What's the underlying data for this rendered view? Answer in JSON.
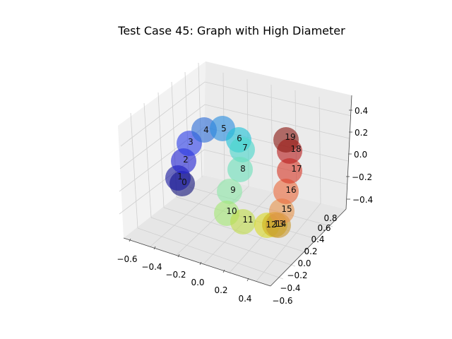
{
  "title": "Test Case 45: Graph with High Diameter",
  "axes": {
    "x_ticks": [
      "−0.6",
      "−0.4",
      "−0.2",
      "0.0",
      "0.2",
      "0.4"
    ],
    "y_ticks": [
      "−0.6",
      "−0.4",
      "−0.2",
      "0.0",
      "0.2",
      "0.4",
      "0.6",
      "0.8"
    ],
    "z_ticks": [
      "−0.4",
      "−0.2",
      "0.0",
      "0.2",
      "0.4"
    ]
  },
  "nodes": [
    {
      "label": "0",
      "color": "#15157a"
    },
    {
      "label": "1",
      "color": "#1a1aa0"
    },
    {
      "label": "2",
      "color": "#2323d2"
    },
    {
      "label": "3",
      "color": "#2d3fe6"
    },
    {
      "label": "4",
      "color": "#2e6ed6"
    },
    {
      "label": "5",
      "color": "#2a8ee0"
    },
    {
      "label": "6",
      "color": "#22c4d8"
    },
    {
      "label": "7",
      "color": "#4ad6cc"
    },
    {
      "label": "8",
      "color": "#6ee0bc"
    },
    {
      "label": "9",
      "color": "#8ee6a8"
    },
    {
      "label": "10",
      "color": "#a4e676"
    },
    {
      "label": "11",
      "color": "#c0dc4c"
    },
    {
      "label": "12",
      "color": "#d8d828"
    },
    {
      "label": "13",
      "color": "#d2b41a"
    },
    {
      "label": "14",
      "color": "#c89830"
    },
    {
      "label": "15",
      "color": "#e6944e"
    },
    {
      "label": "16",
      "color": "#ea6a3e"
    },
    {
      "label": "17",
      "color": "#d63a2a"
    },
    {
      "label": "18",
      "color": "#b81e1e"
    },
    {
      "label": "19",
      "color": "#8a1a14"
    }
  ]
}
